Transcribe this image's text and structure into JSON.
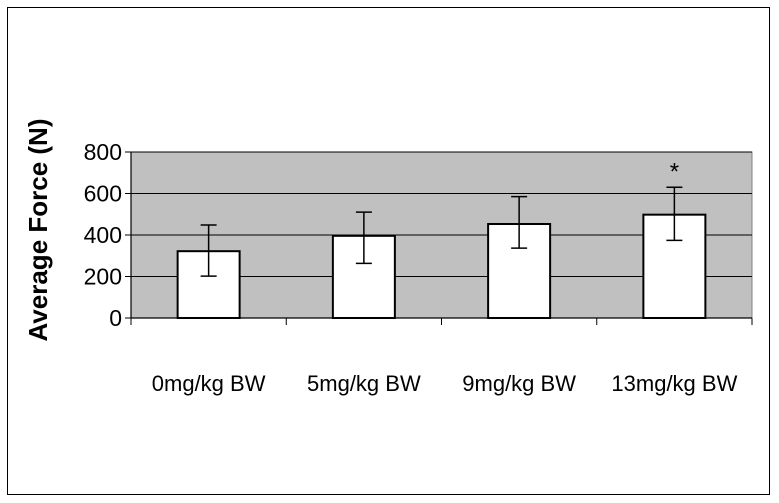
{
  "chart_data": {
    "type": "bar",
    "title": "",
    "xlabel": "",
    "ylabel": "Average Force (N)",
    "categories": [
      "0mg/kg BW",
      "5mg/kg BW",
      "9mg/kg BW",
      "13mg/kg BW"
    ],
    "values": [
      322,
      396,
      453,
      498
    ],
    "error_upper": [
      448,
      510,
      585,
      630
    ],
    "error_lower": [
      202,
      263,
      337,
      374
    ],
    "significance": [
      "",
      "",
      "",
      "*"
    ],
    "yticks": [
      0,
      200,
      400,
      600,
      800
    ],
    "ylim": [
      0,
      800
    ],
    "grid": true,
    "legend": "none",
    "colors": {
      "plot_background": "#c0c0c0",
      "bar_fill": "#ffffff",
      "bar_stroke": "#000000",
      "gridline": "#000000"
    }
  }
}
